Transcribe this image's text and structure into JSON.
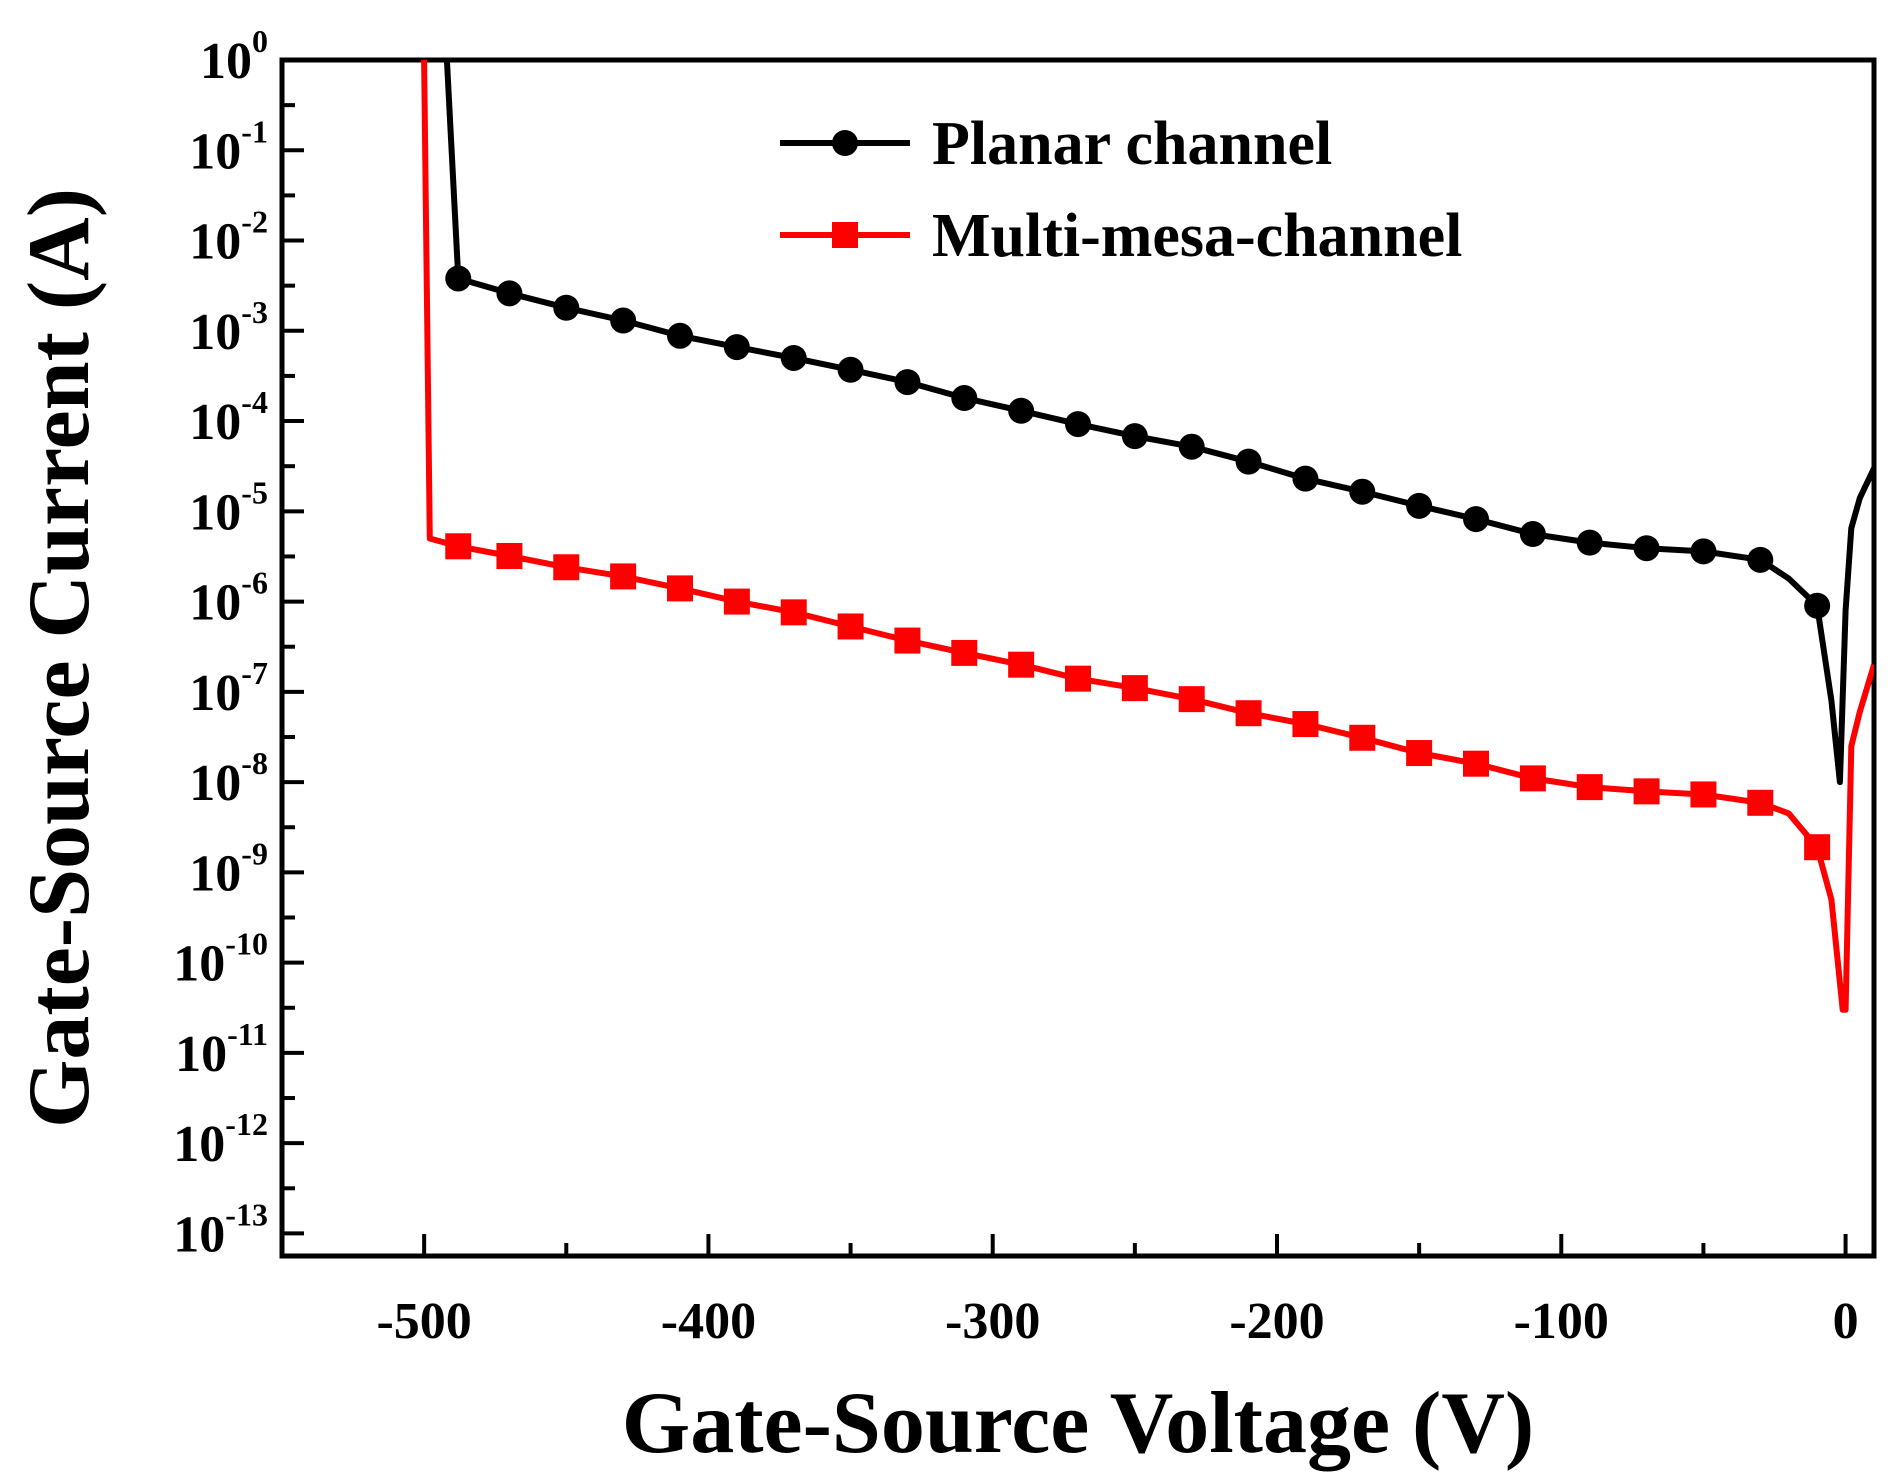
{
  "chart_data": {
    "type": "line",
    "xlabel": "Gate-Source Voltage (V)",
    "ylabel": "Gate-Source Current (A)",
    "xlim": [
      -550,
      10
    ],
    "ylim_log10": [
      -13.25,
      0
    ],
    "y_scale": "log",
    "x_ticks": [
      -500,
      -400,
      -300,
      -200,
      -100,
      0
    ],
    "x_tick_labels": [
      "-500",
      "-400",
      "-300",
      "-200",
      "-100",
      "0"
    ],
    "y_ticks": [
      {
        "base": "10",
        "exp": "0"
      },
      {
        "base": "10",
        "exp": "-1"
      },
      {
        "base": "10",
        "exp": "-2"
      },
      {
        "base": "10",
        "exp": "-3"
      },
      {
        "base": "10",
        "exp": "-4"
      },
      {
        "base": "10",
        "exp": "-5"
      },
      {
        "base": "10",
        "exp": "-6"
      },
      {
        "base": "10",
        "exp": "-7"
      },
      {
        "base": "10",
        "exp": "-8"
      },
      {
        "base": "10",
        "exp": "-9"
      },
      {
        "base": "10",
        "exp": "-10"
      },
      {
        "base": "10",
        "exp": "-11"
      },
      {
        "base": "10",
        "exp": "-12"
      },
      {
        "base": "10",
        "exp": "-13"
      }
    ],
    "legend_position": "top-right",
    "series": [
      {
        "name": "Planar channel",
        "color": "#000000",
        "marker": "circle",
        "x": [
          -492,
          -488,
          -470,
          -450,
          -430,
          -410,
          -390,
          -370,
          -350,
          -330,
          -310,
          -290,
          -270,
          -250,
          -230,
          -210,
          -190,
          -170,
          -150,
          -130,
          -110,
          -90,
          -70,
          -50,
          -30,
          -20,
          -10,
          -5,
          -2,
          0,
          2,
          5,
          10
        ],
        "y": [
          1,
          0.0038,
          0.0026,
          0.0018,
          0.0013,
          0.00088,
          0.00066,
          0.0005,
          0.00037,
          0.00027,
          0.00018,
          0.00013,
          9.25e-05,
          6.8e-05,
          5.2e-05,
          3.55e-05,
          2.3e-05,
          1.65e-05,
          1.15e-05,
          8.2e-06,
          5.6e-06,
          4.5e-06,
          3.9e-06,
          3.6e-06,
          2.9e-06,
          1.8e-06,
          9e-07,
          8e-08,
          1e-08,
          8e-07,
          6.5e-06,
          1.4e-05,
          3e-05
        ]
      },
      {
        "name": "Multi-mesa-channel",
        "color": "#ff0000",
        "marker": "square",
        "x": [
          -500,
          -498,
          -488,
          -470,
          -450,
          -430,
          -410,
          -390,
          -370,
          -350,
          -330,
          -310,
          -290,
          -270,
          -250,
          -230,
          -210,
          -190,
          -170,
          -150,
          -130,
          -110,
          -90,
          -70,
          -50,
          -30,
          -20,
          -10,
          -5,
          -1,
          0,
          2,
          5,
          10
        ],
        "y": [
          1,
          5e-06,
          4.1e-06,
          3.2e-06,
          2.4e-06,
          1.9e-06,
          1.4e-06,
          1e-06,
          7.6e-07,
          5.3e-07,
          3.7e-07,
          2.7e-07,
          2e-07,
          1.4e-07,
          1.1e-07,
          8.3e-08,
          5.8e-08,
          4.4e-08,
          3.1e-08,
          2.1e-08,
          1.6e-08,
          1.1e-08,
          8.8e-09,
          7.9e-09,
          7.3e-09,
          5.9e-09,
          4.5e-09,
          1.9e-09,
          5e-10,
          3e-11,
          3e-11,
          2.5e-08,
          6e-08,
          2e-07
        ]
      }
    ]
  }
}
